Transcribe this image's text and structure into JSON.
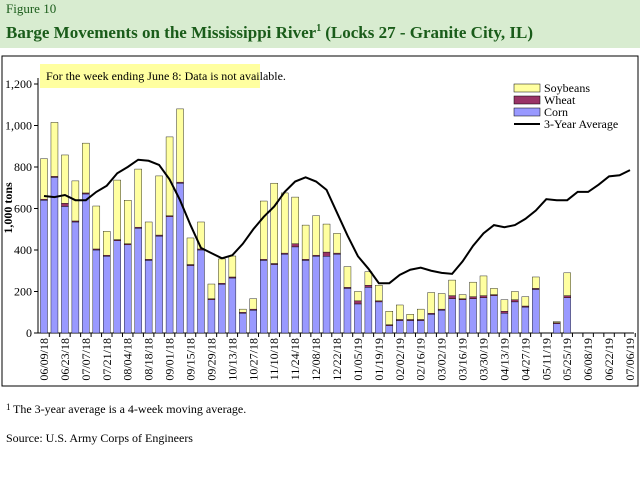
{
  "chart_data": {
    "type": "bar",
    "figure_label": "Figure 10",
    "title": "Barge Movements on the Mississippi River",
    "title_note": "1",
    "title_suffix": "(Locks 27 - Granite City, IL)",
    "y_label": "1,000 tons",
    "annotation": "For the week ending June 8: Data is not available.",
    "footnote_mark": "1",
    "footnote": "The 3-year average is a 4-week moving average.",
    "source": "Source:  U.S. Army Corps of Engineers",
    "stacked": true,
    "legend": "top-right",
    "categories": [
      "06/09/18",
      null,
      "06/23/18",
      null,
      "07/07/18",
      null,
      "07/21/18",
      null,
      "08/04/18",
      null,
      "08/18/18",
      null,
      "09/01/18",
      null,
      "09/15/18",
      null,
      "09/29/18",
      null,
      "10/13/18",
      null,
      "10/27/18",
      null,
      "11/10/18",
      null,
      "11/24/18",
      null,
      "12/08/18",
      null,
      "12/22/18",
      null,
      "01/05/19",
      null,
      "01/19/19",
      null,
      "02/02/19",
      null,
      "02/16/19",
      null,
      "03/02/19",
      null,
      "03/16/19",
      null,
      "03/30/19",
      null,
      "04/13/19",
      null,
      "04/27/19",
      null,
      "05/11/19",
      null,
      "05/25/19",
      null,
      "06/08/19",
      null,
      "06/22/19",
      null,
      "07/06/19"
    ],
    "series": [
      {
        "name": "Corn",
        "type": "bar",
        "color": "#9999ff",
        "values": [
          640,
          750,
          610,
          535,
          670,
          400,
          370,
          445,
          425,
          505,
          350,
          467,
          560,
          722,
          325,
          400,
          160,
          235,
          265,
          95,
          110,
          350,
          330,
          380,
          415,
          350,
          370,
          370,
          380,
          215,
          140,
          220,
          150,
          35,
          60,
          60,
          60,
          90,
          110,
          165,
          160,
          165,
          170,
          180,
          95,
          150,
          125,
          210,
          null,
          45,
          170,
          null,
          null,
          null,
          null,
          null,
          null
        ]
      },
      {
        "name": "Wheat",
        "type": "bar",
        "color": "#993366",
        "values": [
          5,
          5,
          15,
          5,
          5,
          5,
          5,
          5,
          5,
          5,
          5,
          5,
          5,
          5,
          5,
          5,
          5,
          5,
          5,
          5,
          5,
          5,
          5,
          5,
          15,
          5,
          5,
          20,
          5,
          5,
          15,
          10,
          5,
          5,
          5,
          5,
          5,
          5,
          5,
          15,
          5,
          10,
          10,
          5,
          10,
          10,
          5,
          5,
          null,
          5,
          10,
          null,
          null,
          null,
          null,
          null,
          null
        ]
      },
      {
        "name": "Soybeans",
        "type": "bar",
        "color": "#ffffa0",
        "values": [
          195,
          260,
          233,
          193,
          240,
          207,
          115,
          287,
          210,
          280,
          180,
          285,
          380,
          353,
          128,
          130,
          71,
          117,
          101,
          15,
          50,
          281,
          387,
          290,
          225,
          165,
          190,
          135,
          95,
          100,
          45,
          65,
          75,
          65,
          70,
          25,
          50,
          100,
          75,
          75,
          20,
          70,
          95,
          30,
          55,
          40,
          45,
          55,
          null,
          5,
          110,
          null,
          null,
          null,
          null,
          null,
          null
        ]
      },
      {
        "name": "3-Year Average",
        "type": "line",
        "color": "#000000",
        "values": [
          660,
          655,
          665,
          640,
          640,
          680,
          710,
          770,
          800,
          835,
          830,
          810,
          740,
          640,
          520,
          410,
          385,
          360,
          375,
          430,
          500,
          560,
          610,
          680,
          730,
          750,
          730,
          690,
          580,
          470,
          370,
          310,
          240,
          240,
          280,
          305,
          315,
          300,
          290,
          285,
          345,
          420,
          480,
          520,
          510,
          520,
          550,
          590,
          645,
          640,
          640,
          680,
          680,
          715,
          755,
          760,
          785
        ]
      }
    ],
    "ylim": [
      0,
      1200
    ],
    "yticks": [
      0,
      200,
      400,
      600,
      800,
      {
        "value": 1000,
        "label": "1,000"
      },
      {
        "value": 1200,
        "label": "1,200"
      }
    ]
  }
}
